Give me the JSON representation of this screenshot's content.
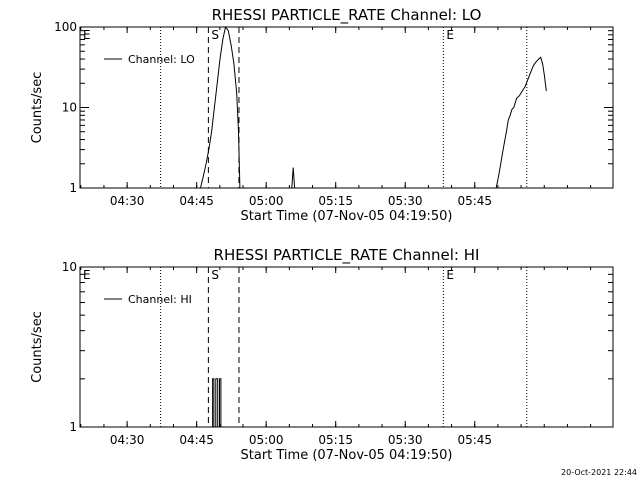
{
  "footer": {
    "timestamp": "20-Oct-2021 22:44"
  },
  "chart_data": [
    {
      "type": "line",
      "title": "RHESSI PARTICLE_RATE Channel: LO",
      "xlabel": "Start Time (07-Nov-05 04:19:50)",
      "ylabel": "Counts/sec",
      "y_scale": "log",
      "ylim": [
        1,
        100
      ],
      "y_ticks": [
        1,
        10,
        100
      ],
      "y_tick_labels": [
        "1",
        "10",
        "100"
      ],
      "x_unit": "minutes since 04:19:50",
      "xlim": [
        0,
        115
      ],
      "x_ticks": [
        10.17,
        25.17,
        40.17,
        55.17,
        70.17,
        85.17
      ],
      "x_tick_labels": [
        "04:30",
        "04:45",
        "05:00",
        "05:15",
        "05:30",
        "05:45"
      ],
      "legend": {
        "position": "top-left",
        "entries": [
          "Channel: LO"
        ]
      },
      "markers": [
        {
          "label": "E",
          "x": 0,
          "style": "dotted"
        },
        {
          "label": "",
          "x": 17.4,
          "style": "dotted"
        },
        {
          "label": "S",
          "x": 27.7,
          "style": "dashed"
        },
        {
          "label": "",
          "x": 34.3,
          "style": "dashed"
        },
        {
          "label": "E",
          "x": 78.4,
          "style": "dotted"
        },
        {
          "label": "",
          "x": 96.4,
          "style": "dotted"
        }
      ],
      "series": [
        {
          "name": "Channel: LO",
          "segments": [
            [
              [
                26.0,
                1
              ],
              [
                26.6,
                1.4
              ],
              [
                27.2,
                2
              ],
              [
                27.8,
                3
              ],
              [
                28.4,
                5
              ],
              [
                29.0,
                10
              ],
              [
                29.6,
                20
              ],
              [
                30.2,
                40
              ],
              [
                30.8,
                70
              ],
              [
                31.4,
                100
              ],
              [
                32.0,
                90
              ],
              [
                32.6,
                60
              ],
              [
                33.2,
                35
              ],
              [
                33.8,
                15
              ],
              [
                34.2,
                5
              ],
              [
                34.5,
                1
              ]
            ],
            [
              [
                45.7,
                1
              ],
              [
                46.0,
                1.8
              ],
              [
                46.3,
                1
              ]
            ],
            [
              [
                89.8,
                1
              ],
              [
                90.4,
                1.5
              ],
              [
                91.0,
                2.4
              ],
              [
                91.5,
                3.5
              ],
              [
                92.0,
                5
              ],
              [
                92.4,
                7
              ],
              [
                92.8,
                8
              ],
              [
                93.2,
                9.5
              ],
              [
                93.6,
                10
              ],
              [
                94.2,
                13
              ],
              [
                94.8,
                14
              ],
              [
                95.4,
                16
              ],
              [
                96.0,
                18
              ],
              [
                96.6,
                22
              ],
              [
                97.2,
                27
              ],
              [
                97.8,
                33
              ],
              [
                98.4,
                37
              ],
              [
                99.0,
                40
              ],
              [
                99.4,
                42
              ],
              [
                99.8,
                35
              ],
              [
                100.2,
                25
              ],
              [
                100.6,
                16
              ]
            ]
          ]
        }
      ]
    },
    {
      "type": "line",
      "title": "RHESSI PARTICLE_RATE Channel: HI",
      "xlabel": "Start Time (07-Nov-05 04:19:50)",
      "ylabel": "Counts/sec",
      "y_scale": "log",
      "ylim": [
        1,
        10
      ],
      "y_ticks": [
        1,
        10
      ],
      "y_tick_labels": [
        "1",
        "10"
      ],
      "x_unit": "minutes since 04:19:50",
      "xlim": [
        0,
        115
      ],
      "x_ticks": [
        10.17,
        25.17,
        40.17,
        55.17,
        70.17,
        85.17
      ],
      "x_tick_labels": [
        "04:30",
        "04:45",
        "05:00",
        "05:15",
        "05:30",
        "05:45"
      ],
      "legend": {
        "position": "top-left",
        "entries": [
          "Channel: HI"
        ]
      },
      "markers": [
        {
          "label": "E",
          "x": 0,
          "style": "dotted"
        },
        {
          "label": "",
          "x": 17.4,
          "style": "dotted"
        },
        {
          "label": "S",
          "x": 27.7,
          "style": "dashed"
        },
        {
          "label": "",
          "x": 34.3,
          "style": "dashed"
        },
        {
          "label": "E",
          "x": 78.4,
          "style": "dotted"
        },
        {
          "label": "",
          "x": 96.4,
          "style": "dotted"
        }
      ],
      "series": [
        {
          "name": "Channel: HI",
          "segments": [
            [
              [
                28.6,
                1
              ],
              [
                28.6,
                2
              ],
              [
                28.9,
                2
              ],
              [
                28.9,
                1
              ],
              [
                29.3,
                1
              ],
              [
                29.3,
                2
              ],
              [
                29.7,
                2
              ],
              [
                29.7,
                1
              ],
              [
                30.1,
                1
              ],
              [
                30.1,
                2
              ],
              [
                30.4,
                2
              ],
              [
                30.4,
                1
              ]
            ]
          ]
        }
      ]
    }
  ]
}
